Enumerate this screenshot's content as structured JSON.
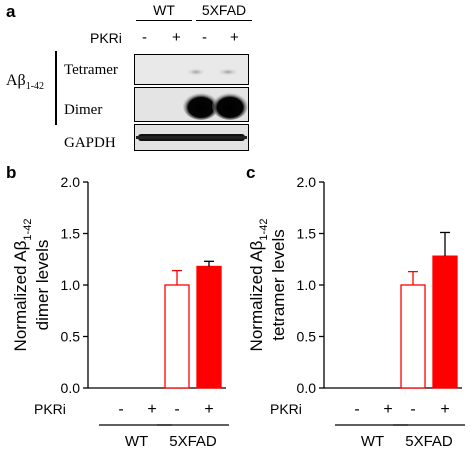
{
  "panel_a": {
    "letter": "a",
    "groups": [
      "WT",
      "5XFAD"
    ],
    "treatment": "PKRi",
    "signs": [
      "-",
      "+",
      "-",
      "+"
    ],
    "abeta": "Aβ",
    "abeta_sub": "1-42",
    "rows": [
      "Tetramer",
      "Dimer",
      "GAPDH"
    ]
  },
  "panel_b": {
    "letter": "b"
  },
  "panel_c": {
    "letter": "c"
  },
  "chart_data": [
    {
      "type": "bar",
      "panel": "b",
      "ylabel_main": "Normalized Aβ",
      "ylabel_sub": "1-42",
      "ylabel_line2": "dimer levels",
      "ylim": [
        0.0,
        2.0
      ],
      "yticks": [
        "0.0",
        "0.5",
        "1.0",
        "1.5",
        "2.0"
      ],
      "treatment_label": "PKRi",
      "signs": [
        "-",
        "+",
        "-",
        "+"
      ],
      "groups": [
        "WT",
        "5XFAD"
      ],
      "categories": [
        "WT -",
        "WT +",
        "5XFAD -",
        "5XFAD +"
      ],
      "values": [
        0,
        0,
        1.0,
        1.18
      ],
      "errors": [
        0,
        0,
        0.14,
        0.05
      ],
      "colors": [
        "#ff0000",
        "#ff0000",
        "#ff0000",
        "#ff0000"
      ],
      "filled": [
        false,
        true,
        false,
        true
      ]
    },
    {
      "type": "bar",
      "panel": "c",
      "ylabel_main": "Normalized Aβ",
      "ylabel_sub": "1-42",
      "ylabel_line2": "tetramer levels",
      "ylim": [
        0.0,
        2.0
      ],
      "yticks": [
        "0.0",
        "0.5",
        "1.0",
        "1.5",
        "2.0"
      ],
      "treatment_label": "PKRi",
      "signs": [
        "-",
        "+",
        "-",
        "+"
      ],
      "groups": [
        "WT",
        "5XFAD"
      ],
      "categories": [
        "WT -",
        "WT +",
        "5XFAD -",
        "5XFAD +"
      ],
      "values": [
        0,
        0,
        1.0,
        1.28
      ],
      "errors": [
        0,
        0,
        0.13,
        0.23
      ],
      "colors": [
        "#ff0000",
        "#ff0000",
        "#ff0000",
        "#ff0000"
      ],
      "filled": [
        false,
        true,
        false,
        true
      ]
    }
  ]
}
